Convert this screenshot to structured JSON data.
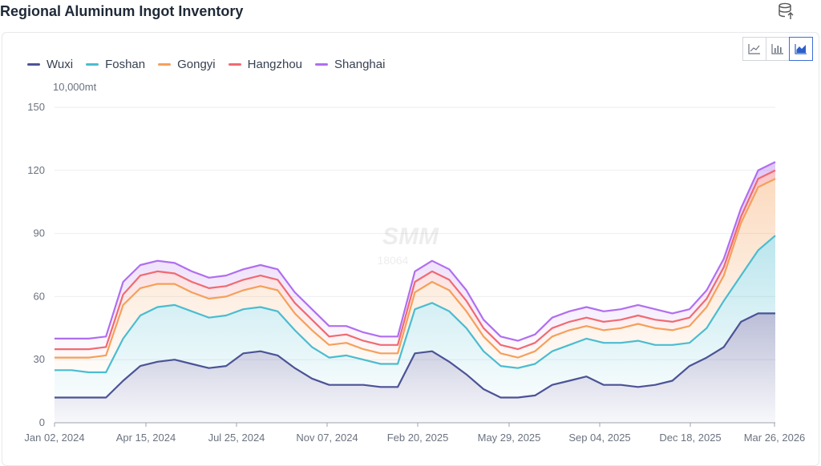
{
  "page": {
    "title": "Regional Aluminum Ingot Inventory"
  },
  "toolbar": {
    "buttons": [
      "line-chart",
      "bar-chart",
      "area-chart"
    ],
    "active": "area-chart"
  },
  "watermark": {
    "brand": "SMM",
    "phone": "18064"
  },
  "chart_data": {
    "type": "area",
    "stacked": true,
    "unit": "10,000mt",
    "ylim": [
      0,
      150
    ],
    "yticks": [
      0,
      30,
      60,
      90,
      120,
      150
    ],
    "xtick_labels": [
      "Jan 02, 2024",
      "Apr 15, 2024",
      "Jul 25, 2024",
      "Nov 07, 2024",
      "Feb 20, 2025",
      "May 29, 2025",
      "Sep 04, 2025",
      "Dec 18, 2025",
      "Mar 26, 2026"
    ],
    "grid": true,
    "legend_position": "top-left",
    "x": [
      "Jan 02, 2024",
      "Jan 22, 2024",
      "Feb 08, 2024",
      "Feb 19, 2024",
      "Mar 07, 2024",
      "Apr 15, 2024",
      "Apr 29, 2024",
      "May 20, 2024",
      "Jun 13, 2024",
      "Jul 04, 2024",
      "Jul 25, 2024",
      "Aug 12, 2024",
      "Sep 05, 2024",
      "Sep 26, 2024",
      "Oct 17, 2024",
      "Nov 07, 2024",
      "Nov 28, 2024",
      "Dec 19, 2024",
      "Jan 09, 2025",
      "Jan 23, 2025",
      "Feb 06, 2025",
      "Feb 20, 2025",
      "Mar 13, 2025",
      "Apr 03, 2025",
      "Apr 24, 2025",
      "May 15, 2025",
      "May 29, 2025",
      "Jun 19, 2025",
      "Jul 10, 2025",
      "Jul 31, 2025",
      "Aug 21, 2025",
      "Sep 04, 2025",
      "Sep 25, 2025",
      "Oct 16, 2025",
      "Nov 06, 2025",
      "Nov 27, 2025",
      "Dec 18, 2025",
      "Jan 08, 2026",
      "Jan 29, 2026",
      "Feb 12, 2026",
      "Feb 26, 2026",
      "Mar 12, 2026",
      "Mar 26, 2026"
    ],
    "series": [
      {
        "name": "Wuxi",
        "color": "#4b5396",
        "values": [
          12,
          12,
          12,
          12,
          20,
          27,
          29,
          30,
          28,
          26,
          27,
          33,
          34,
          32,
          26,
          21,
          18,
          18,
          18,
          17,
          17,
          33,
          34,
          29,
          23,
          16,
          12,
          12,
          13,
          18,
          20,
          22,
          18,
          18,
          17,
          18,
          20,
          27,
          31,
          36,
          48,
          52,
          52
        ]
      },
      {
        "name": "Foshan",
        "color": "#4bbcd0",
        "values": [
          13,
          13,
          12,
          12,
          20,
          24,
          26,
          26,
          25,
          24,
          24,
          21,
          21,
          21,
          18,
          15,
          13,
          14,
          12,
          11,
          11,
          21,
          23,
          24,
          22,
          18,
          15,
          14,
          15,
          16,
          17,
          18,
          20,
          20,
          22,
          19,
          17,
          11,
          14,
          22,
          22,
          30,
          37
        ]
      },
      {
        "name": "Gongyi",
        "color": "#f5a05a",
        "values": [
          6,
          6,
          7,
          8,
          16,
          13,
          11,
          10,
          9,
          9,
          9,
          9,
          10,
          10,
          8,
          8,
          6,
          6,
          5,
          5,
          5,
          8,
          10,
          10,
          8,
          7,
          6,
          5,
          6,
          7,
          7,
          6,
          6,
          7,
          8,
          8,
          7,
          8,
          10,
          12,
          25,
          30,
          27
        ]
      },
      {
        "name": "Hangzhou",
        "color": "#f06a72",
        "values": [
          4,
          4,
          4,
          4,
          5,
          6,
          6,
          5,
          5,
          5,
          5,
          5,
          5,
          5,
          5,
          5,
          4,
          4,
          4,
          4,
          4,
          5,
          5,
          5,
          5,
          4,
          4,
          4,
          4,
          4,
          4,
          4,
          4,
          4,
          4,
          4,
          4,
          4,
          4,
          4,
          3,
          4,
          4
        ]
      },
      {
        "name": "Shanghai",
        "color": "#b06ef0",
        "values": [
          5,
          5,
          5,
          5,
          6,
          5,
          5,
          5,
          5,
          5,
          5,
          5,
          5,
          5,
          5,
          5,
          5,
          4,
          4,
          4,
          4,
          5,
          5,
          5,
          5,
          4,
          4,
          4,
          4,
          5,
          5,
          5,
          5,
          5,
          5,
          5,
          4,
          4,
          4,
          4,
          4,
          4,
          4
        ]
      }
    ]
  }
}
